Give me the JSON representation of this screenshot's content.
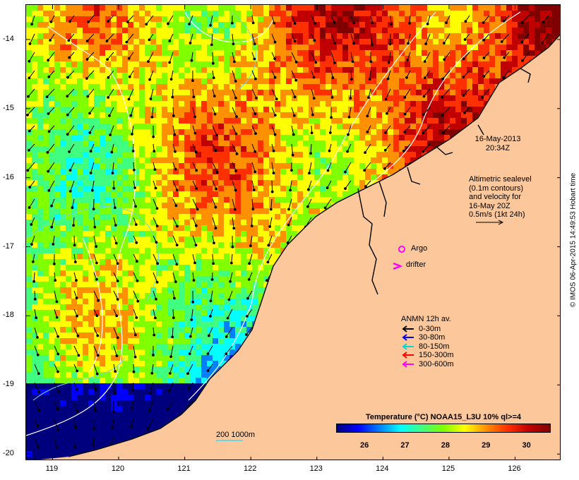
{
  "map": {
    "lat_labels": [
      "-14",
      "-15",
      "-16",
      "-17",
      "-18",
      "-19",
      "-20"
    ],
    "lat_values": [
      -14,
      -15,
      -16,
      -17,
      -18,
      -19,
      -20
    ],
    "lon_labels": [
      "119",
      "120",
      "121",
      "122",
      "123",
      "124",
      "125",
      "126"
    ],
    "lon_values": [
      119,
      120,
      121,
      122,
      123,
      124,
      125,
      126
    ],
    "lat_range": [
      -20.1,
      -13.5
    ],
    "lon_range": [
      118.6,
      126.7
    ]
  },
  "annotations": {
    "date": "16-May-2013",
    "time": "20:34Z",
    "altimetry_lines": [
      "Altimetric sealevel",
      "(0.1m contours)",
      "and velocity for",
      "16-May 20Z",
      "0.5m/s (1kt 24h)"
    ],
    "argo": "Argo",
    "drifter": "drifter",
    "bathymetry_scale": "200  1000m",
    "credit": "© IMOS 06-Apr-2015 14:49:53 Hobart time"
  },
  "anmn": {
    "title": "ANMN 12h av.",
    "depths": [
      {
        "label": "0-30m",
        "color": "#000000"
      },
      {
        "label": "30-80m",
        "color": "#0000ff"
      },
      {
        "label": "80-150m",
        "color": "#00d8d8"
      },
      {
        "label": "150-300m",
        "color": "#ff0000"
      },
      {
        "label": "300-600m",
        "color": "#ff00ff"
      }
    ]
  },
  "colorbar": {
    "title": "Temperature (°C) NOAA15_L3U 10% ql>=4",
    "ticks": [
      "26",
      "27",
      "28",
      "29",
      "30"
    ],
    "range": [
      25.3,
      30.6
    ],
    "colors": [
      "#00007f",
      "#0000ff",
      "#0080ff",
      "#00ffff",
      "#40ff80",
      "#80ff00",
      "#ffff00",
      "#ff9000",
      "#ff3000",
      "#c00000",
      "#800000"
    ]
  },
  "colors": {
    "land": "#fcc79a",
    "contour": "#ffffff",
    "isobath": "#6ad6e4",
    "argo": "#ff00ff"
  }
}
